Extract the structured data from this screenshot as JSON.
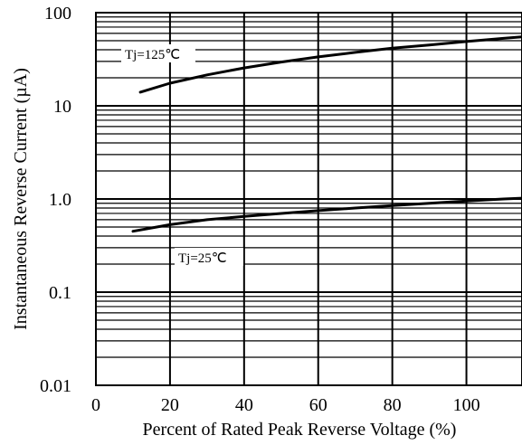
{
  "chart_data": {
    "type": "line",
    "y_scale": "log",
    "xlim": [
      0,
      115
    ],
    "ylim": [
      0.01,
      100
    ],
    "grid": true,
    "xlabel": "Percent of Rated Peak Reverse Voltage (%)",
    "ylabel": "Instantaneous Reverse Current (µA)",
    "x_tick_labels": [
      "0",
      "20",
      "40",
      "60",
      "80",
      "100"
    ],
    "x_ticks": [
      0,
      20,
      40,
      60,
      80,
      100
    ],
    "y_tick_labels": [
      "100",
      "10",
      "1.0",
      "0.1",
      "0.01"
    ],
    "y_ticks": [
      100,
      10,
      1,
      0.1,
      0.01
    ],
    "series": [
      {
        "name": "Tj=125℃",
        "x": [
          12,
          20,
          30,
          40,
          50,
          60,
          70,
          80,
          90,
          100,
          110,
          115
        ],
        "y": [
          14,
          17.5,
          21.5,
          25.5,
          29.5,
          33.5,
          37.5,
          41.5,
          45,
          49,
          53,
          55
        ]
      },
      {
        "name": "Tj=25℃",
        "x": [
          10,
          20,
          30,
          40,
          50,
          60,
          70,
          80,
          90,
          100,
          110,
          115
        ],
        "y": [
          0.45,
          0.53,
          0.6,
          0.65,
          0.7,
          0.75,
          0.8,
          0.85,
          0.9,
          0.95,
          1.0,
          1.02
        ]
      }
    ]
  }
}
